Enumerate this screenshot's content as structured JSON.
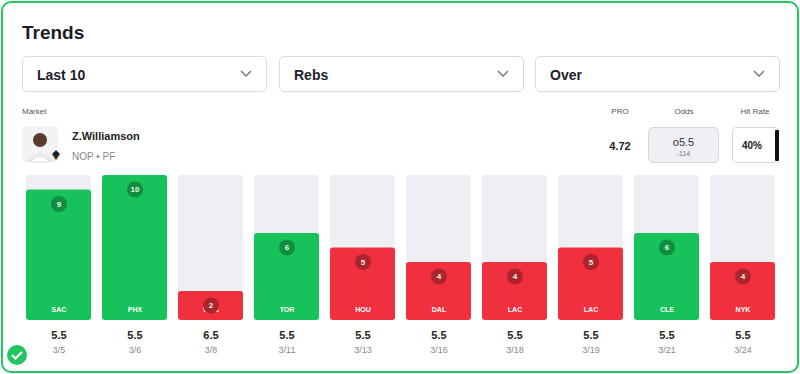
{
  "chart_data": {
    "type": "bar",
    "title": "Trends",
    "categories": [
      "SAC",
      "PHX",
      "WAS",
      "TOR",
      "HOU",
      "DAL",
      "LAC",
      "LAC",
      "CLE",
      "NYK"
    ],
    "values": [
      9,
      10,
      2,
      6,
      5,
      4,
      4,
      5,
      6,
      4
    ],
    "colors": [
      "#17c25a",
      "#17c25a",
      "#f0303e",
      "#17c25a",
      "#f0303e",
      "#f0303e",
      "#f0303e",
      "#f0303e",
      "#17c25a",
      "#f0303e"
    ],
    "lines": [
      5.5,
      5.5,
      6.5,
      5.5,
      5.5,
      5.5,
      5.5,
      5.5,
      5.5,
      5.5
    ],
    "dates": [
      "3/5",
      "3/6",
      "3/8",
      "3/11",
      "3/13",
      "3/16",
      "3/18",
      "3/19",
      "3/21",
      "3/24"
    ],
    "ylim": [
      0,
      10
    ],
    "data_labels": true,
    "tick_labels": "x"
  },
  "page": {
    "filters": [
      "Last 10",
      "Rebs",
      "Over"
    ],
    "market_label": "Market",
    "columns": [
      "PRO",
      "Odds",
      "Hit Rate"
    ],
    "player": {
      "name": "Z.Williamson",
      "team": "NOP • PF"
    },
    "pro": 4.72,
    "odds": {
      "line": "o5.5",
      "price": -114
    },
    "hit_rate": {
      "value": 40,
      "label": "40%"
    }
  }
}
